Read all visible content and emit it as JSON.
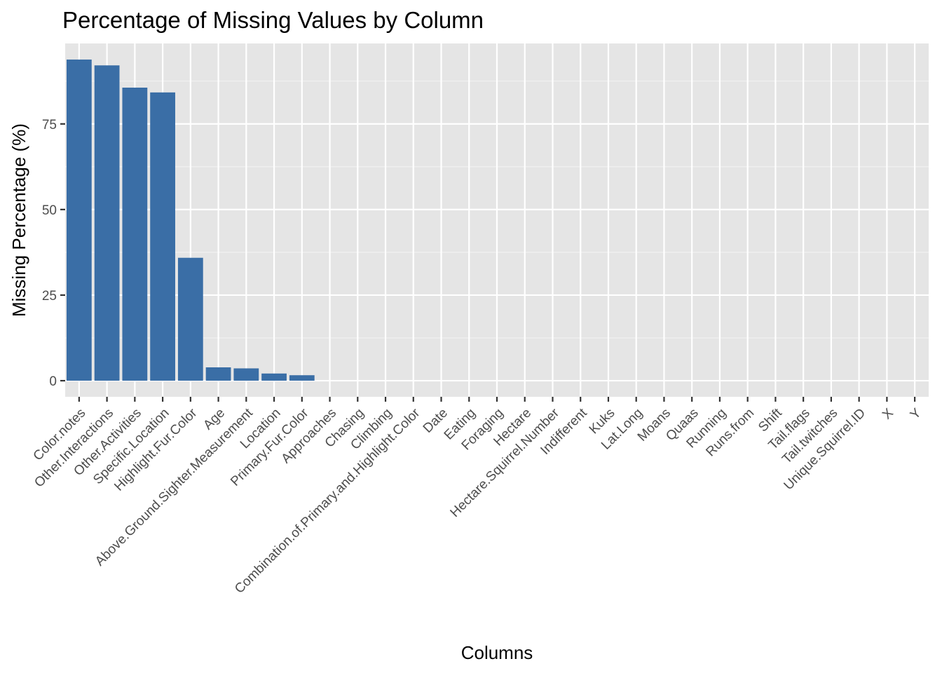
{
  "chart_data": {
    "type": "bar",
    "title": "Percentage of Missing Values by Column",
    "xlabel": "Columns",
    "ylabel": "Missing Percentage (%)",
    "categories": [
      "Color.notes",
      "Other.Interactions",
      "Other.Activities",
      "Specific.Location",
      "Highlight.Fur.Color",
      "Age",
      "Above.Ground.Sighter.Measurement",
      "Location",
      "Primary.Fur.Color",
      "Approaches",
      "Chasing",
      "Climbing",
      "Combination.of.Primary.and.Highlight.Color",
      "Date",
      "Eating",
      "Foraging",
      "Hectare",
      "Hectare.Squirrel.Number",
      "Indifferent",
      "Kuks",
      "Lat.Long",
      "Moans",
      "Quaas",
      "Running",
      "Runs.from",
      "Shift",
      "Tail.flags",
      "Tail.twitches",
      "Unique.Squirrel.ID",
      "X",
      "Y"
    ],
    "values": [
      93.8,
      92.1,
      85.6,
      84.2,
      35.9,
      3.9,
      3.6,
      2.1,
      1.6,
      0,
      0,
      0,
      0,
      0,
      0,
      0,
      0,
      0,
      0,
      0,
      0,
      0,
      0,
      0,
      0,
      0,
      0,
      0,
      0,
      0,
      0
    ],
    "ylim": [
      -4.7,
      98.5
    ],
    "yticks": [
      0,
      25,
      50,
      75
    ],
    "grid": true,
    "legend": "none",
    "colors": {
      "bar": "#3a6ea6",
      "panel": "#e5e5e5",
      "grid_major": "#ffffff",
      "grid_minor": "#f2f2f2",
      "tick_label": "#4d4d4d"
    }
  }
}
